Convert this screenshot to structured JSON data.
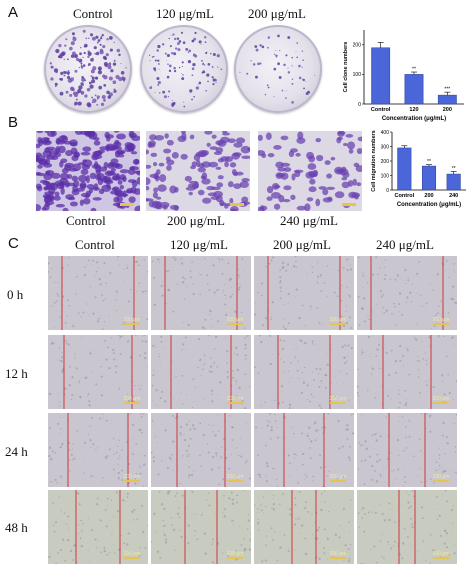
{
  "panel_labels": {
    "a": "A",
    "b": "B",
    "c": "C"
  },
  "panel_a": {
    "headers": [
      "Control",
      "120 μg/mL",
      "200 μg/mL"
    ],
    "chart_data": {
      "type": "bar",
      "categories": [
        "Control",
        "120",
        "200"
      ],
      "values": [
        190,
        100,
        30
      ],
      "errors": [
        18,
        8,
        10
      ],
      "significance": [
        "",
        "**",
        "***"
      ],
      "xlabel": "Concentration (μg/mL)",
      "ylabel": "Cell clone numbers",
      "ylim": [
        0,
        250
      ],
      "yticks": [
        "0",
        "100",
        "200"
      ],
      "bar_color": "#4a66d8"
    }
  },
  "panel_b": {
    "labels": [
      "Control",
      "200 μg/mL",
      "240 μg/mL"
    ],
    "chart_data": {
      "type": "bar",
      "categories": [
        "Control",
        "200",
        "240"
      ],
      "values": [
        290,
        165,
        110
      ],
      "errors": [
        15,
        10,
        18
      ],
      "significance": [
        "",
        "**",
        "**"
      ],
      "xlabel": "Concentration (μg/mL)",
      "ylabel": "Cell migration numbers",
      "ylim": [
        0,
        400
      ],
      "yticks": [
        "0",
        "100",
        "200",
        "300",
        "400"
      ],
      "bar_color": "#4a66d8"
    }
  },
  "panel_c": {
    "col_headers": [
      "Control",
      "120 μg/mL",
      "200 μg/mL",
      "240 μg/mL"
    ],
    "row_headers": [
      "0 h",
      "12 h",
      "24 h",
      "48 h"
    ],
    "scale_label": "200 μm",
    "wound_line_color": "#d2343a"
  }
}
